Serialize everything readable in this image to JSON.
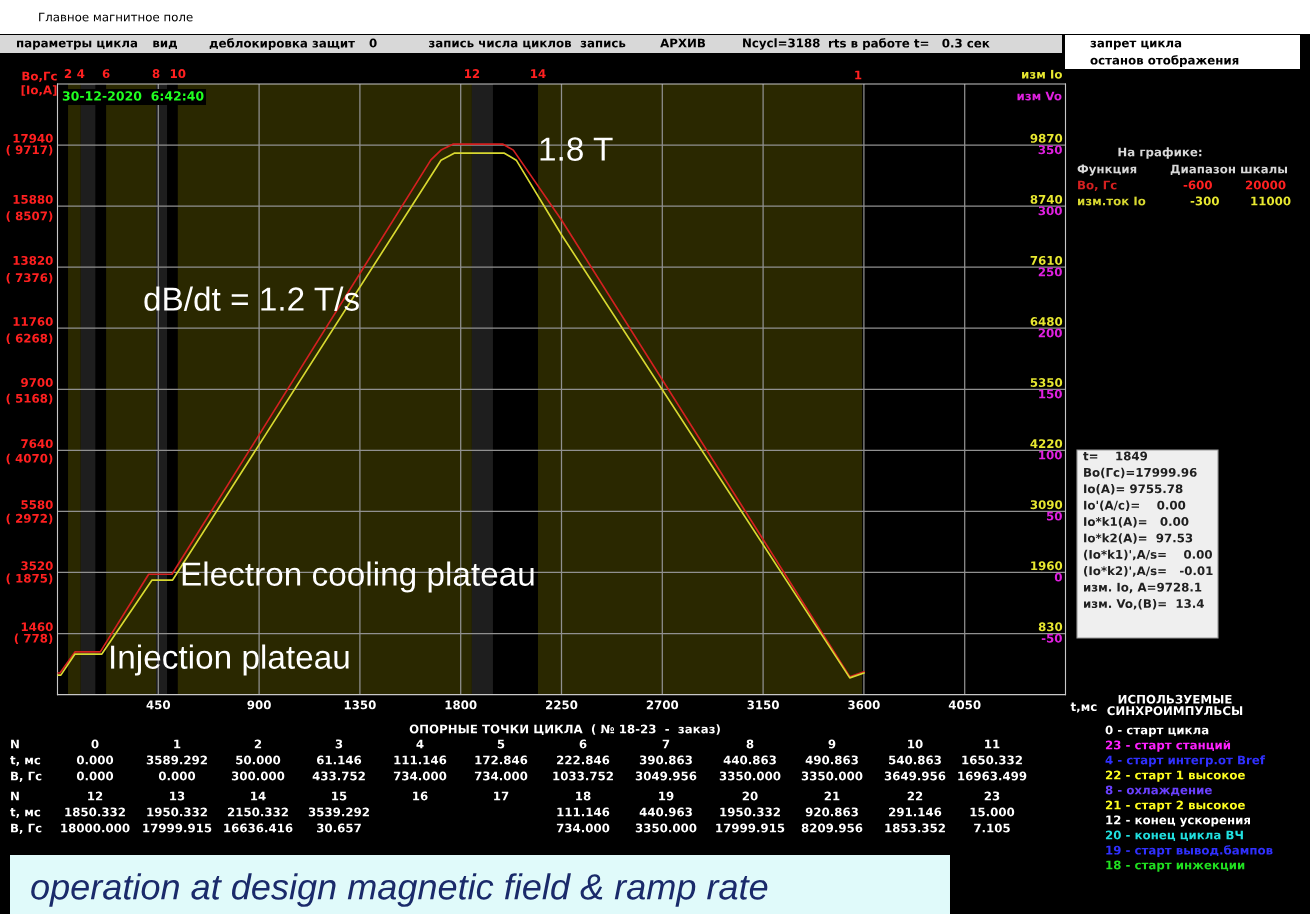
{
  "chart_data": {
    "type": "line",
    "ylabel": "Bo,Гс",
    "y3label": "[Io,A]",
    "y2label": "изм Io",
    "xlabel": "t,мс",
    "xlim": [
      0,
      4500
    ],
    "xticks": [
      450,
      900,
      1350,
      1800,
      2250,
      2700,
      3150,
      3600,
      4050
    ],
    "ylim": [
      -600,
      20000
    ],
    "yticks": [
      1460,
      3520,
      5580,
      7640,
      9700,
      11760,
      13820,
      15880,
      17940
    ],
    "y2lim": [
      -300,
      11000
    ],
    "y2ticks": [
      830,
      1960,
      3090,
      4220,
      5350,
      6480,
      7610,
      8740,
      9870
    ],
    "y3lim": [
      -339,
      10834
    ],
    "y3ticks": [
      {
        "value": 778,
        "label": "( 778)"
      },
      {
        "value": 1875,
        "label": "( 1875)"
      },
      {
        "value": 2972,
        "label": "( 2972)"
      },
      {
        "value": 4070,
        "label": "( 4070)"
      },
      {
        "value": 5168,
        "label": "( 5168)"
      },
      {
        "value": 6268,
        "label": "( 6268)"
      },
      {
        "value": 7376,
        "label": "( 7376)"
      },
      {
        "value": 8507,
        "label": "( 8507)"
      },
      {
        "value": 9717,
        "label": "( 9717)"
      }
    ],
    "grid": true,
    "series": [
      {
        "name": "Bo, Гс",
        "color": "#d42020",
        "x": [
          0,
          11,
          78,
          191,
          407,
          511,
          1667,
          1712,
          1765,
          1989,
          2035,
          2250,
          3537,
          3600
        ],
        "values": [
          130,
          130,
          840,
          840,
          3460,
          3460,
          17440,
          17770,
          17970,
          17970,
          17770,
          15410,
          0,
          170
        ]
      },
      {
        "name": "изм.ток Io",
        "color": "#d8d830",
        "axis": "y2",
        "x": [
          0,
          15,
          78,
          198,
          422,
          514,
          1712,
          1771,
          1995,
          2048,
          2250,
          3537,
          3600
        ],
        "values": [
          60,
          60,
          450,
          450,
          1820,
          1820,
          9590,
          9720,
          9720,
          9590,
          8210,
          10,
          100
        ]
      }
    ],
    "bands": [
      {
        "axis": "x",
        "from": 47,
        "to": 104,
        "color": "#2a2800",
        "label": "2"
      },
      {
        "axis": "x",
        "from": 104,
        "to": 169,
        "color": "#1e1e1e",
        "label": "4"
      },
      {
        "axis": "x",
        "from": 217,
        "to": 440,
        "color": "#2a2800",
        "label": "6"
      },
      {
        "axis": "x",
        "from": 440,
        "to": 489,
        "color": "#1e1e1e",
        "label": "8"
      },
      {
        "axis": "x",
        "from": 537,
        "to": 1850,
        "color": "#2a2800",
        "label": "10"
      },
      {
        "axis": "x",
        "from": 1850,
        "to": 1944,
        "color": "#1e1e1e",
        "label": "12"
      },
      {
        "axis": "x",
        "from": 2145,
        "to": 3592,
        "color": "#2a2800",
        "label": "14"
      }
    ],
    "annotations": [
      "1.8 T",
      "dB/dt = 1.2 T/s",
      "Electron cooling plateau",
      "Injection plateau",
      "-50",
      "0",
      "50",
      "100",
      "150",
      "200",
      "250",
      "300",
      "350",
      "1",
      "Главное магнитное поле",
      "параметры цикла",
      "вид",
      "деблокировка защит",
      "0",
      "запись числа циклов",
      "запись",
      "АРХИВ",
      "Ncycl=3188",
      "rts в работе t=   0.3 сек",
      "запрет цикла",
      "останов отображения",
      "30-12-2020  6:42:40",
      "изм Vo",
      "На графике:",
      "Функция",
      "Диапазон шкалы",
      "-600",
      "20000",
      "-300",
      "11000",
      "t=    1849",
      "Bo(Гс)=17999.96",
      "Io(A)= 9755.78",
      "Io'(A/c)=    0.00",
      "Io*k1(A)=   0.00",
      "Io*k2(A)=  97.53",
      "(Io*k1)',A/s=    0.00",
      "(Io*k2)',A/s=   -0.01",
      "изм. Io, A=9728.1",
      "изм. Vo,(B)=  13.4",
      "ОПОРНЫЕ ТОЧКИ ЦИКЛА  ( № 18-23  -  заказ)",
      "N",
      "0",
      "1",
      "2",
      "3",
      "4",
      "5",
      "6",
      "7",
      "8",
      "9",
      "10",
      "11",
      "t, мс",
      "0.000",
      "3589.292",
      "50.000",
      "61.146",
      "111.146",
      "172.846",
      "222.846",
      "390.863",
      "440.863",
      "490.863",
      "540.863",
      "1650.332",
      "B, Гс",
      "0.000",
      "0.000",
      "300.000",
      "433.752",
      "734.000",
      "734.000",
      "1033.752",
      "3049.956",
      "3350.000",
      "3350.000",
      "3649.956",
      "16963.499",
      "N",
      "12",
      "13",
      "14",
      "15",
      "16",
      "17",
      "18",
      "19",
      "20",
      "21",
      "22",
      "23",
      "t, мс",
      "1850.332",
      "1950.332",
      "2150.332",
      "3539.292",
      "111.146",
      "440.963",
      "1950.332",
      "920.863",
      "291.146",
      "15.000",
      "B, Гс",
      "18000.000",
      "17999.915",
      "16636.416",
      "30.657",
      "734.000",
      "3350.000",
      "17999.915",
      "8209.956",
      "1853.352",
      "7.105",
      "ИСПОЛЬЗУЕМЫЕ\nСИНХРОИМПУЛЬСЫ",
      "0 - старт цикла",
      "23 - старт станций",
      "4 - старт интегр.от Bref",
      "22 - старт 1 высокое",
      "8 - охлаждение",
      "21 - старт 2 высокое",
      "12 - конец ускорения",
      "20 - конец цикла ВЧ",
      "19 - старт вывод.бампов",
      "18 - старт инжекции",
      "operation at design magnetic field & ramp rate"
    ]
  }
}
